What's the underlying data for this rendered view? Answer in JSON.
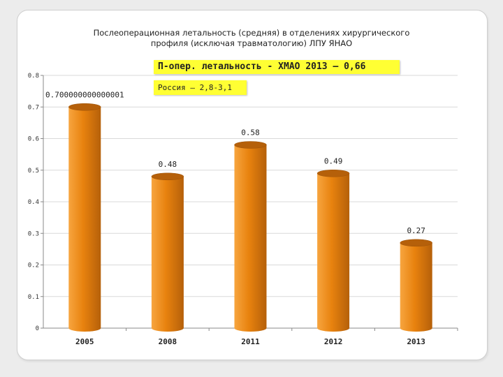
{
  "chart_data": {
    "type": "bar",
    "title_line1": "Послеоперационная летальность (средняя) в отделениях хирургического",
    "title_line2": "профиля (исключая травматологию)  ЛПУ ЯНАО",
    "categories": [
      "2005",
      "2008",
      "2011",
      "2012",
      "2013"
    ],
    "values": [
      0.7,
      0.48,
      0.58,
      0.49,
      0.27
    ],
    "data_labels": [
      "0.700000000000001",
      "0.48",
      "0.58",
      "0.49",
      "0.27"
    ],
    "ylim": [
      0,
      0.8
    ],
    "yticks": [
      "0",
      "0.1",
      "0.2",
      "0.3",
      "0.4",
      "0.5",
      "0.6",
      "0.7",
      "0.8"
    ],
    "xlabel": "",
    "ylabel": "",
    "grid": true,
    "bar_color": "#e8820e",
    "bar_color_dark": "#b5600a",
    "bar_color_light": "#f7a53f",
    "annotations": [
      "П-опер. летальность -  ХМАО 2013 – 0,66",
      "Россия –  2,8-3,1"
    ],
    "annotation_color": "#ffff33"
  }
}
